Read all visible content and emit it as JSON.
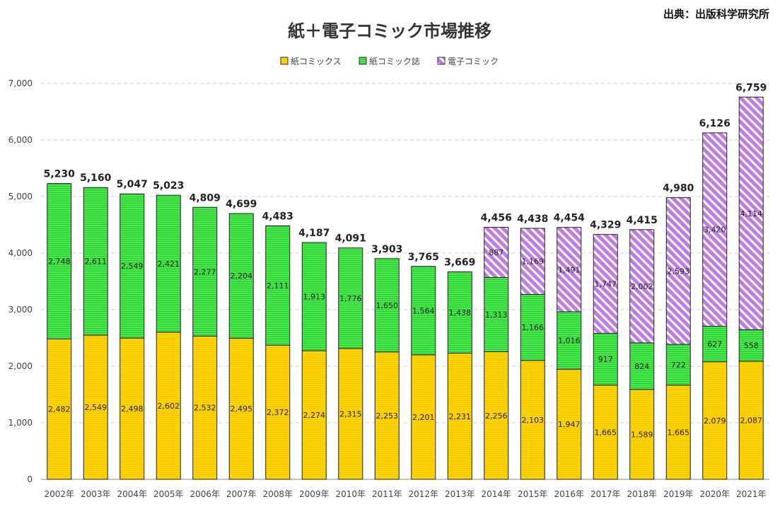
{
  "chart_data": {
    "type": "bar",
    "stacked": true,
    "title": "紙＋電子コミック市場推移",
    "source": "出典：出版科学研究所",
    "categories": [
      "2002年",
      "2003年",
      "2004年",
      "2005年",
      "2006年",
      "2007年",
      "2008年",
      "2009年",
      "2010年",
      "2011年",
      "2012年",
      "2013年",
      "2014年",
      "2015年",
      "2016年",
      "2017年",
      "2018年",
      "2019年",
      "2020年",
      "2021年"
    ],
    "series": [
      {
        "name": "紙コミックス",
        "color": "#ffd600",
        "values": [
          2482,
          2549,
          2498,
          2602,
          2532,
          2495,
          2372,
          2274,
          2315,
          2253,
          2201,
          2231,
          2256,
          2103,
          1947,
          1665,
          1589,
          1665,
          2079,
          2087
        ]
      },
      {
        "name": "紙コミック誌",
        "color": "#47e84a",
        "values": [
          2748,
          2611,
          2549,
          2421,
          2277,
          2204,
          2111,
          1913,
          1776,
          1650,
          1564,
          1438,
          1313,
          1166,
          1016,
          917,
          824,
          722,
          627,
          558
        ]
      },
      {
        "name": "電子コミック",
        "color": "#cc7fe8",
        "values": [
          null,
          null,
          null,
          null,
          null,
          null,
          null,
          null,
          null,
          null,
          null,
          null,
          887,
          1169,
          1491,
          1747,
          2002,
          2593,
          3420,
          4114
        ]
      }
    ],
    "totals": [
      5230,
      5160,
      5047,
      5023,
      4809,
      4699,
      4483,
      4187,
      4091,
      3903,
      3765,
      3669,
      4456,
      4438,
      4454,
      4329,
      4415,
      4980,
      6126,
      6759
    ],
    "ylim": [
      0,
      7000
    ],
    "yticks": [
      0,
      1000,
      2000,
      3000,
      4000,
      5000,
      6000,
      7000
    ],
    "grid": true,
    "legend_position": "top"
  }
}
